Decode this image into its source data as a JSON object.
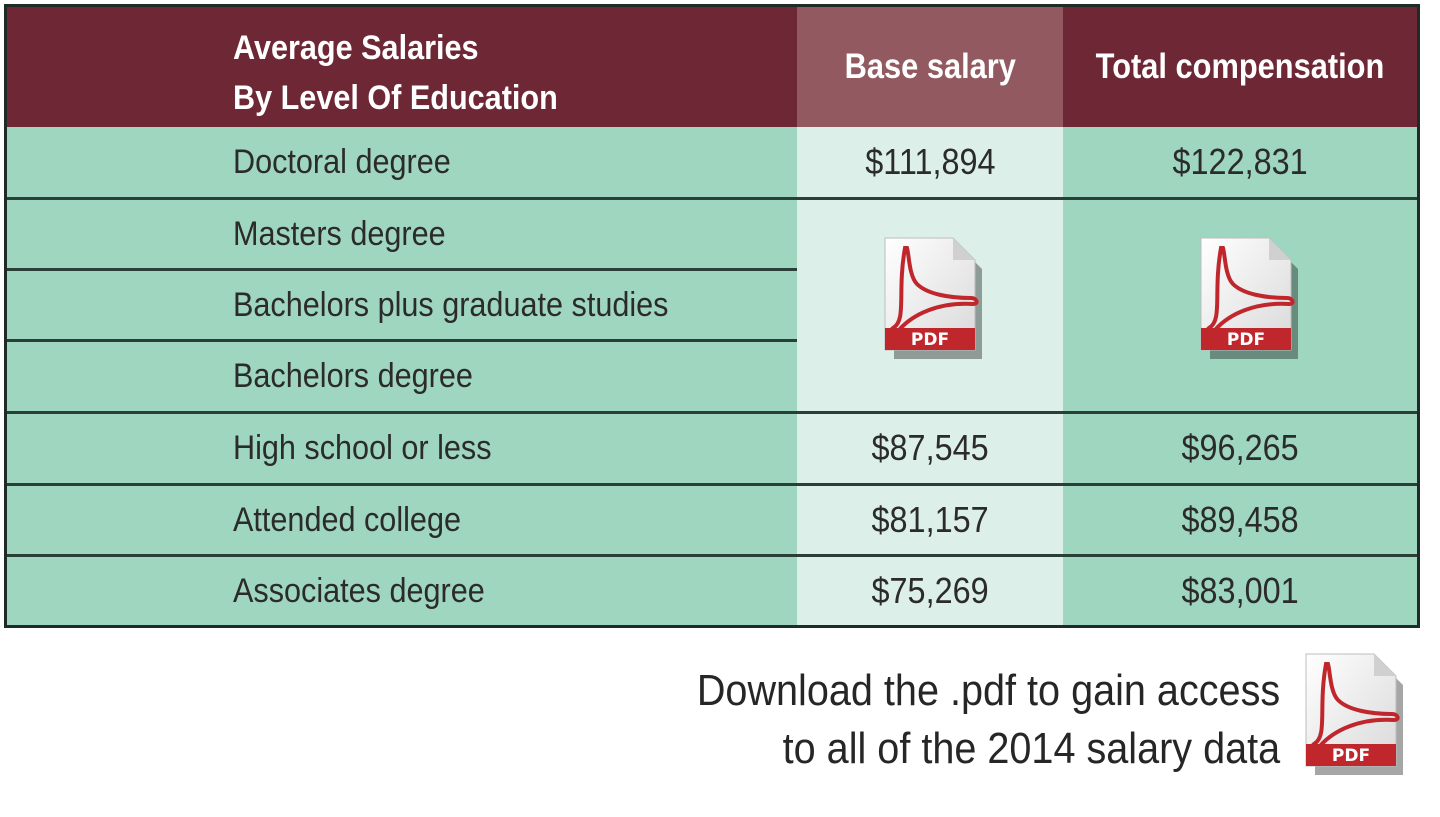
{
  "table": {
    "title_line1": "Average Salaries",
    "title_line2": "By Level Of Education",
    "col_base": "Base salary",
    "col_total": "Total compensation",
    "rows": [
      {
        "label": "Doctoral degree",
        "base": "$111,894",
        "total": "$122,831"
      },
      {
        "label": "Masters degree"
      },
      {
        "label": "Bachelors plus graduate studies"
      },
      {
        "label": "Bachelors degree"
      },
      {
        "label": "High school or less",
        "base": "$87,545",
        "total": "$96,265"
      },
      {
        "label": "Attended college",
        "base": "$81,157",
        "total": "$89,458"
      },
      {
        "label": "Associates degree",
        "base": "$75,269",
        "total": "$83,001"
      }
    ]
  },
  "pdf_icon": {
    "icon": "pdf-file-icon",
    "label": "PDF"
  },
  "footer": {
    "line1": "Download the .pdf to gain access",
    "line2": "to all of the 2014 salary data"
  },
  "colors": {
    "header": "#6e2734",
    "header_highlight": "#925a60",
    "row_bg": "#9fd6bf",
    "base_col_bg": "#dcefe8",
    "pdf_red": "#c0272d"
  }
}
